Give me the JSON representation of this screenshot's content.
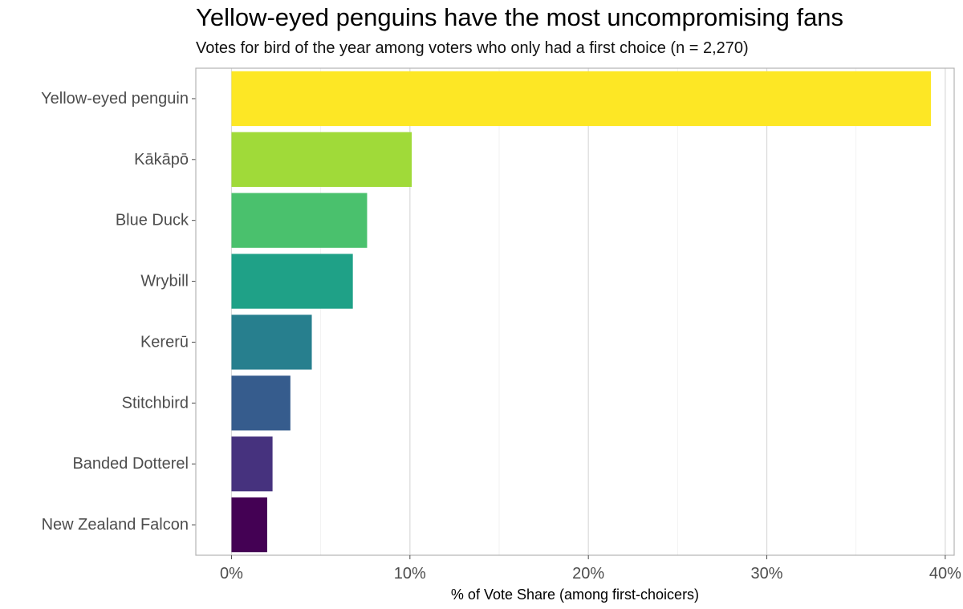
{
  "chart_data": {
    "type": "bar",
    "orientation": "horizontal",
    "title": "Yellow-eyed penguins have the most uncompromising fans",
    "subtitle": "Votes for bird of the year among voters who only had a first choice (n = 2,270)",
    "xlabel": "% of Vote Share (among first-choicers)",
    "ylabel": "",
    "categories": [
      "Yellow-eyed penguin",
      "Kākāpō",
      "Blue Duck",
      "Wrybill",
      "Kererū",
      "Stitchbird",
      "Banded Dotterel",
      "New Zealand Falcon"
    ],
    "values": [
      39.2,
      10.1,
      7.6,
      6.8,
      4.5,
      3.3,
      2.3,
      2.0
    ],
    "colors": [
      "#FDE725",
      "#A0DA39",
      "#4AC16D",
      "#1FA187",
      "#277F8E",
      "#365C8D",
      "#46327E",
      "#440154"
    ],
    "xlim": [
      -2,
      40.5
    ],
    "xticks": [
      0,
      10,
      20,
      30,
      40
    ],
    "xtick_labels": [
      "0%",
      "10%",
      "20%",
      "30%",
      "40%"
    ],
    "grid": "vertical major",
    "legend": "none"
  }
}
